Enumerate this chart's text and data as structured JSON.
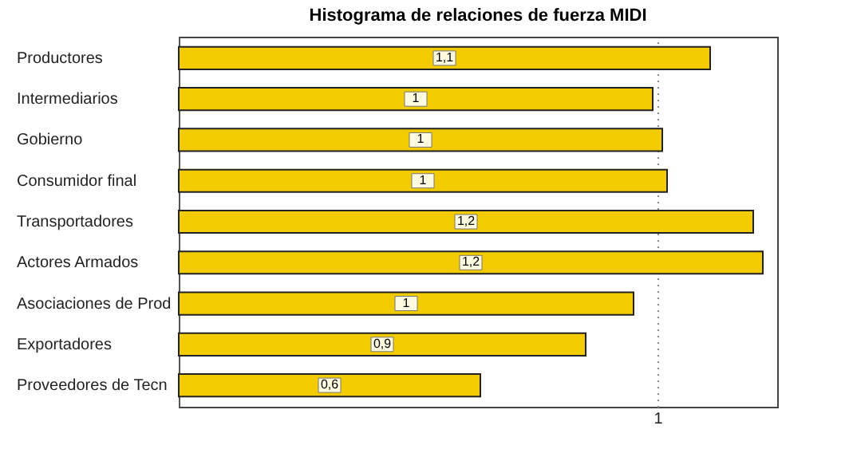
{
  "chart_data": {
    "type": "bar",
    "orientation": "horizontal",
    "title": "Histograma de relaciones de fuerza MIDI",
    "categories": [
      "Productores",
      "Intermediarios",
      "Gobierno",
      "Consumidor final",
      "Transportadores",
      "Actores Armados",
      "Asociaciones  de Prod",
      "Exportadores",
      "Proveedores  de Tecn"
    ],
    "values": [
      1.11,
      0.99,
      1.01,
      1.02,
      1.2,
      1.22,
      0.95,
      0.85,
      0.63
    ],
    "value_labels": [
      "1,1",
      "1",
      "1",
      "1",
      "1,2",
      "1,2",
      "1",
      "0,9",
      "0,6"
    ],
    "color": "#f2cc00",
    "xlim": [
      0,
      1.25
    ],
    "xticks": [
      {
        "value": 0,
        "label": null
      },
      1
    ],
    "grid": "x"
  }
}
